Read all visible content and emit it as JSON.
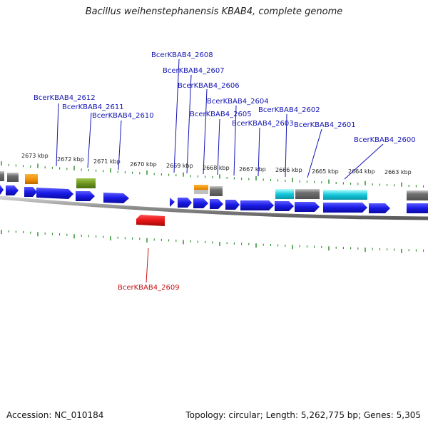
{
  "header": {
    "title": "Bacillus weihenstephanensis KBAB4, complete genome"
  },
  "footer": {
    "accession": "Accession: NC_010184",
    "topology": "Topology: circular; Length: 5,262,775 bp; Genes: 5,305"
  },
  "colors": {
    "cds": "#1a1ae6",
    "gene_label_forward": "#1414b4",
    "gene_label_reverse": "#c81414",
    "tick": "#228b22",
    "backbone": "#8c8c8c"
  },
  "kbp_labels": [
    "2673 kbp",
    "2672 kbp",
    "2671 kbp",
    "2670 kbp",
    "2669 kbp",
    "2668 kbp",
    "2667 kbp",
    "2666 kbp",
    "2665 kbp",
    "2664 kbp",
    "2663 kbp"
  ],
  "gene_labels": [
    {
      "name": "BcerKBAB4_2612",
      "strand": "forward"
    },
    {
      "name": "BcerKBAB4_2611",
      "strand": "forward"
    },
    {
      "name": "BcerKBAB4_2610",
      "strand": "forward"
    },
    {
      "name": "BcerKBAB4_2608",
      "strand": "forward"
    },
    {
      "name": "BcerKBAB4_2607",
      "strand": "forward"
    },
    {
      "name": "BcerKBAB4_2606",
      "strand": "forward"
    },
    {
      "name": "BcerKBAB4_2605",
      "strand": "forward"
    },
    {
      "name": "BcerKBAB4_2604",
      "strand": "forward"
    },
    {
      "name": "BcerKBAB4_2603",
      "strand": "forward"
    },
    {
      "name": "BcerKBAB4_2602",
      "strand": "forward"
    },
    {
      "name": "BcerKBAB4_2601",
      "strand": "forward"
    },
    {
      "name": "BcerKBAB4_2600",
      "strand": "forward"
    },
    {
      "name": "BcerKBAB4_2609",
      "strand": "reverse"
    }
  ]
}
